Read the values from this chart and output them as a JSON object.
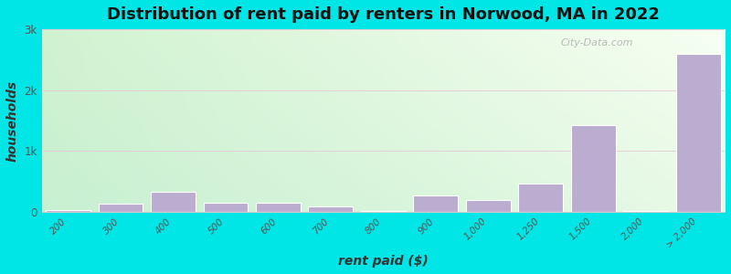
{
  "title": "Distribution of rent paid by renters in Norwood, MA in 2022",
  "xlabel": "rent paid ($)",
  "ylabel": "households",
  "categories": [
    "200",
    "300",
    "400",
    "500",
    "600",
    "700",
    "800",
    "900",
    "1,000",
    "1,250",
    "1,500",
    "2,000",
    "> 2,000"
  ],
  "values": [
    25,
    130,
    330,
    155,
    145,
    90,
    10,
    265,
    200,
    470,
    1430,
    10,
    2600
  ],
  "bar_color": "#bbadd0",
  "bg_color_topleft": "#d4f0d4",
  "bg_color_topright": "#f0f8e8",
  "bg_color_bottomleft": "#c8ecd4",
  "bg_color_bottomright": "#eaf5e0",
  "outer_bg": "#00e5e5",
  "ylim": [
    0,
    3000
  ],
  "yticks": [
    0,
    1000,
    2000,
    3000
  ],
  "ytick_labels": [
    "0",
    "1k",
    "2k",
    "3k"
  ],
  "title_fontsize": 13,
  "axis_label_fontsize": 10,
  "watermark": "City-Data.com"
}
